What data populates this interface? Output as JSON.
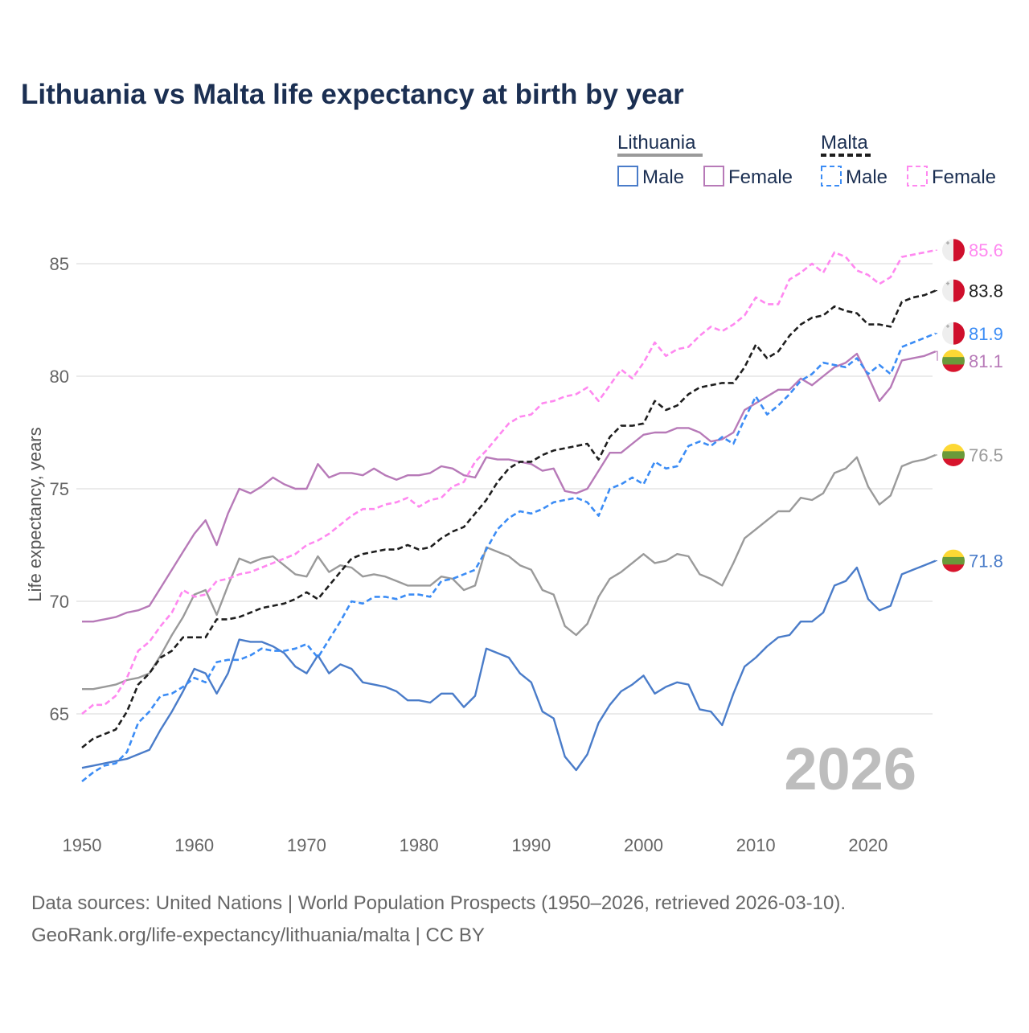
{
  "chart_data": {
    "type": "line",
    "title": "Lithuania vs Malta life expectancy at birth by year",
    "ylabel": "Life expectancy, years",
    "xlabel": "",
    "xlim": [
      1950,
      2026
    ],
    "ylim": [
      61,
      87
    ],
    "x_ticks": [
      1950,
      1960,
      1970,
      1980,
      1990,
      2000,
      2010,
      2020
    ],
    "y_ticks": [
      65,
      70,
      75,
      80,
      85
    ],
    "grid": true,
    "year_watermark": "2026",
    "legend": {
      "position": "top-right",
      "groups": [
        {
          "title": "Lithuania",
          "items": [
            "Male",
            "Female"
          ]
        },
        {
          "title": "Malta",
          "items": [
            "Male",
            "Female"
          ]
        }
      ]
    },
    "x_start": 1950,
    "series": [
      {
        "name": "Lithuania",
        "country": "Lithuania",
        "kind": "overall",
        "color": "#9a9a9a",
        "dashed": false,
        "end_label": "76.5",
        "values": [
          66.1,
          66.1,
          66.2,
          66.3,
          66.5,
          66.6,
          66.8,
          67.6,
          68.5,
          69.3,
          70.3,
          70.5,
          69.4,
          70.7,
          71.9,
          71.7,
          71.9,
          72.0,
          71.6,
          71.2,
          71.1,
          72.0,
          71.3,
          71.6,
          71.5,
          71.1,
          71.2,
          71.1,
          70.9,
          70.7,
          70.7,
          70.7,
          71.1,
          71.0,
          70.5,
          70.7,
          72.4,
          72.2,
          72.0,
          71.6,
          71.4,
          70.5,
          70.3,
          68.9,
          68.5,
          69.0,
          70.2,
          71.0,
          71.3,
          71.7,
          72.1,
          71.7,
          71.8,
          72.1,
          72.0,
          71.2,
          71.0,
          70.7,
          71.7,
          72.8,
          73.2,
          73.6,
          74.0,
          74.0,
          74.6,
          74.5,
          74.8,
          75.7,
          75.9,
          76.4,
          75.1,
          74.3,
          74.7,
          76.0,
          76.2,
          76.3,
          76.5
        ]
      },
      {
        "name": "Lithuania Male",
        "country": "Lithuania",
        "kind": "male",
        "color": "#4a7cc9",
        "dashed": false,
        "end_label": "71.8",
        "values": [
          62.6,
          62.7,
          62.8,
          62.9,
          63.0,
          63.2,
          63.4,
          64.3,
          65.1,
          66.0,
          67.0,
          66.8,
          65.9,
          66.8,
          68.3,
          68.2,
          68.2,
          68.0,
          67.7,
          67.1,
          66.8,
          67.6,
          66.8,
          67.2,
          67.0,
          66.4,
          66.3,
          66.2,
          66.0,
          65.6,
          65.6,
          65.5,
          65.9,
          65.9,
          65.3,
          65.8,
          67.9,
          67.7,
          67.5,
          66.8,
          66.4,
          65.1,
          64.8,
          63.1,
          62.5,
          63.2,
          64.6,
          65.4,
          66.0,
          66.3,
          66.7,
          65.9,
          66.2,
          66.4,
          66.3,
          65.2,
          65.1,
          64.5,
          65.9,
          67.1,
          67.5,
          68.0,
          68.4,
          68.5,
          69.1,
          69.1,
          69.5,
          70.7,
          70.9,
          71.5,
          70.1,
          69.6,
          69.8,
          71.2,
          71.4,
          71.6,
          71.8
        ]
      },
      {
        "name": "Lithuania Female",
        "country": "Lithuania",
        "kind": "female",
        "color": "#b77ab8",
        "dashed": false,
        "end_label": "81.1",
        "values": [
          69.1,
          69.1,
          69.2,
          69.3,
          69.5,
          69.6,
          69.8,
          70.6,
          71.4,
          72.2,
          73.0,
          73.6,
          72.5,
          73.9,
          75.0,
          74.8,
          75.1,
          75.5,
          75.2,
          75.0,
          75.0,
          76.1,
          75.5,
          75.7,
          75.7,
          75.6,
          75.9,
          75.6,
          75.4,
          75.6,
          75.6,
          75.7,
          76.0,
          75.9,
          75.6,
          75.5,
          76.4,
          76.3,
          76.3,
          76.2,
          76.1,
          75.8,
          75.9,
          74.9,
          74.8,
          75.0,
          75.8,
          76.6,
          76.6,
          77.0,
          77.4,
          77.5,
          77.5,
          77.7,
          77.7,
          77.5,
          77.1,
          77.2,
          77.5,
          78.5,
          78.8,
          79.1,
          79.4,
          79.4,
          79.9,
          79.6,
          80.0,
          80.4,
          80.6,
          81.0,
          80.0,
          78.9,
          79.5,
          80.7,
          80.8,
          80.9,
          81.1
        ]
      },
      {
        "name": "Malta",
        "country": "Malta",
        "kind": "overall",
        "color": "#1e1e1e",
        "dashed": true,
        "end_label": "83.8",
        "values": [
          63.5,
          63.9,
          64.1,
          64.3,
          65.1,
          66.3,
          66.8,
          67.5,
          67.8,
          68.4,
          68.4,
          68.4,
          69.2,
          69.2,
          69.3,
          69.5,
          69.7,
          69.8,
          69.9,
          70.1,
          70.4,
          70.1,
          70.7,
          71.3,
          71.9,
          72.1,
          72.2,
          72.3,
          72.3,
          72.5,
          72.3,
          72.4,
          72.8,
          73.1,
          73.3,
          73.9,
          74.5,
          75.3,
          75.9,
          76.2,
          76.2,
          76.5,
          76.7,
          76.8,
          76.9,
          77.0,
          76.3,
          77.3,
          77.8,
          77.8,
          77.9,
          78.9,
          78.5,
          78.7,
          79.2,
          79.5,
          79.6,
          79.7,
          79.7,
          80.4,
          81.4,
          80.8,
          81.1,
          81.8,
          82.3,
          82.6,
          82.7,
          83.1,
          82.9,
          82.8,
          82.3,
          82.3,
          82.2,
          83.3,
          83.5,
          83.6,
          83.8
        ]
      },
      {
        "name": "Malta Male",
        "country": "Malta",
        "kind": "male",
        "color": "#3b8cf5",
        "dashed": true,
        "end_label": "81.9",
        "values": [
          62.0,
          62.4,
          62.7,
          62.8,
          63.3,
          64.6,
          65.1,
          65.8,
          65.9,
          66.2,
          66.6,
          66.4,
          67.3,
          67.4,
          67.4,
          67.6,
          67.9,
          67.8,
          67.8,
          67.9,
          68.1,
          67.5,
          68.3,
          69.1,
          70.0,
          69.9,
          70.2,
          70.2,
          70.1,
          70.3,
          70.3,
          70.2,
          70.9,
          71.0,
          71.2,
          71.4,
          72.3,
          73.2,
          73.7,
          74.0,
          73.9,
          74.1,
          74.4,
          74.5,
          74.6,
          74.4,
          73.8,
          75.0,
          75.2,
          75.5,
          75.2,
          76.2,
          75.9,
          76.0,
          76.9,
          77.1,
          76.9,
          77.3,
          77.0,
          78.1,
          79.1,
          78.3,
          78.7,
          79.2,
          79.8,
          80.1,
          80.6,
          80.5,
          80.4,
          80.8,
          80.1,
          80.5,
          80.1,
          81.3,
          81.5,
          81.7,
          81.9
        ]
      },
      {
        "name": "Malta Female",
        "country": "Malta",
        "kind": "female",
        "color": "#ff88f0",
        "dashed": true,
        "end_label": "85.6",
        "values": [
          65.0,
          65.4,
          65.4,
          65.8,
          66.6,
          67.8,
          68.2,
          68.9,
          69.5,
          70.5,
          70.2,
          70.3,
          70.9,
          71.0,
          71.2,
          71.3,
          71.5,
          71.7,
          71.9,
          72.1,
          72.5,
          72.7,
          73.0,
          73.4,
          73.8,
          74.1,
          74.1,
          74.3,
          74.4,
          74.6,
          74.2,
          74.5,
          74.6,
          75.1,
          75.3,
          76.2,
          76.7,
          77.3,
          77.9,
          78.2,
          78.3,
          78.8,
          78.9,
          79.1,
          79.2,
          79.5,
          78.9,
          79.6,
          80.3,
          79.9,
          80.6,
          81.5,
          80.9,
          81.2,
          81.3,
          81.8,
          82.2,
          82.0,
          82.3,
          82.7,
          83.5,
          83.2,
          83.2,
          84.3,
          84.6,
          85.0,
          84.6,
          85.5,
          85.3,
          84.7,
          84.5,
          84.1,
          84.4,
          85.3,
          85.4,
          85.5,
          85.6
        ]
      }
    ]
  },
  "footer": {
    "line1": "Data sources: United Nations | World Population Prospects (1950–2026, retrieved 2026-03-10).",
    "line2": "GeoRank.org/life-expectancy/lithuania/malta | CC BY"
  },
  "colors": {
    "title": "#1b2f52",
    "axis_text": "#666666",
    "grid": "#ebebeb",
    "watermark": "#bdbdbd",
    "malta_red": "#cf0f2c",
    "malta_white": "#eeeeee",
    "lt_yellow": "#fdd835",
    "lt_green": "#6a9a3a",
    "lt_red": "#d7142c"
  }
}
